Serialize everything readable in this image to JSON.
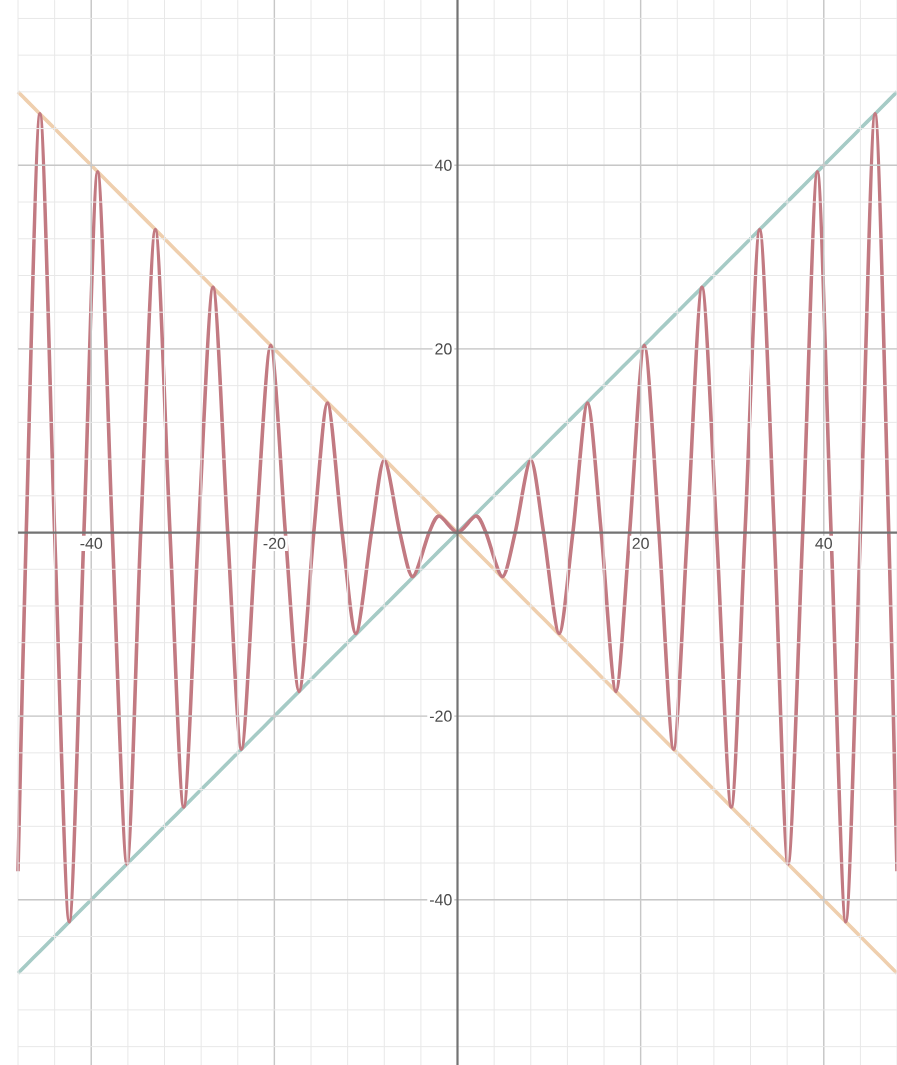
{
  "chart_data": {
    "type": "line",
    "x": [
      -48,
      -47.1,
      -45.6,
      -44.0,
      -42.4,
      -40.8,
      -39.3,
      -37.7,
      -36.1,
      -34.6,
      -33.0,
      -31.4,
      -29.9,
      -28.3,
      -26.7,
      -25.1,
      -23.6,
      -22.0,
      -20.4,
      -18.8,
      -17.3,
      -15.7,
      -14.2,
      -12.6,
      -11.1,
      -9.4,
      -8.0,
      -6.3,
      -4.9,
      -3.1,
      -2.0,
      0,
      2.0,
      3.1,
      4.9,
      6.3,
      8.0,
      9.4,
      11.1,
      12.6,
      14.2,
      15.7,
      17.3,
      18.8,
      20.4,
      22.0,
      23.6,
      25.1,
      26.7,
      28.3,
      29.9,
      31.4,
      33.0,
      34.6,
      36.1,
      37.7,
      39.3,
      40.8,
      42.4,
      44.0,
      45.6,
      47.1,
      48
    ],
    "series": [
      {
        "color": "#a6cbc6",
        "values": [
          -48,
          -47.1,
          -45.6,
          -44.0,
          -42.4,
          -40.8,
          -39.3,
          -37.7,
          -36.1,
          -34.6,
          -33.0,
          -31.4,
          -29.9,
          -28.3,
          -26.7,
          -25.1,
          -23.6,
          -22.0,
          -20.4,
          -18.8,
          -17.3,
          -15.7,
          -14.2,
          -12.6,
          -11.1,
          -9.4,
          -8.0,
          -6.3,
          -4.9,
          -3.1,
          -2.0,
          0,
          2.0,
          3.1,
          4.9,
          6.3,
          8.0,
          9.4,
          11.1,
          12.6,
          14.2,
          15.7,
          17.3,
          18.8,
          20.4,
          22.0,
          23.6,
          25.1,
          26.7,
          28.3,
          29.9,
          31.4,
          33.0,
          34.6,
          36.1,
          37.7,
          39.3,
          40.8,
          42.4,
          44.0,
          45.6,
          47.1,
          48
        ]
      },
      {
        "color": "#efcfae",
        "values": [
          48,
          47.1,
          45.6,
          44.0,
          42.4,
          40.8,
          39.3,
          37.7,
          36.1,
          34.6,
          33.0,
          31.4,
          29.9,
          28.3,
          26.7,
          25.1,
          23.6,
          22.0,
          20.4,
          18.8,
          17.3,
          15.7,
          14.2,
          12.6,
          11.1,
          9.4,
          8.0,
          6.3,
          4.9,
          3.1,
          2.0,
          0,
          -2.0,
          -3.1,
          -4.9,
          -6.3,
          -8.0,
          -9.4,
          -11.1,
          -12.6,
          -14.2,
          -15.7,
          -17.3,
          -18.8,
          -20.4,
          -22.0,
          -23.6,
          -25.1,
          -26.7,
          -28.3,
          -29.9,
          -31.4,
          -33.0,
          -34.6,
          -36.1,
          -37.7,
          -39.3,
          -40.8,
          -42.4,
          -44.0,
          -45.6,
          -47.1,
          -48
        ]
      },
      {
        "color": "#c27a82",
        "values": [
          -36.9,
          0,
          45.6,
          0,
          -42.4,
          0,
          39.3,
          0,
          -36.1,
          0,
          33.0,
          0,
          -29.9,
          0,
          26.7,
          0,
          -23.6,
          0,
          20.4,
          0,
          -17.3,
          0,
          14.1,
          0,
          -11.0,
          0,
          7.9,
          0,
          -4.8,
          0,
          1.8,
          0,
          1.8,
          0,
          -4.8,
          0,
          7.9,
          0,
          -11.0,
          0,
          14.1,
          0,
          -17.3,
          0,
          20.4,
          0,
          -23.6,
          0,
          26.7,
          0,
          -29.9,
          0,
          33.0,
          0,
          -36.1,
          0,
          39.3,
          0,
          -42.4,
          0,
          45.6,
          0,
          -36.9
        ]
      }
    ],
    "xlim": [
      -48,
      48
    ],
    "ylim": [
      -58,
      58
    ],
    "xticks": [
      -40,
      -20,
      20,
      40
    ],
    "yticks": [
      -40,
      -20,
      20,
      40
    ],
    "grid": true
  }
}
